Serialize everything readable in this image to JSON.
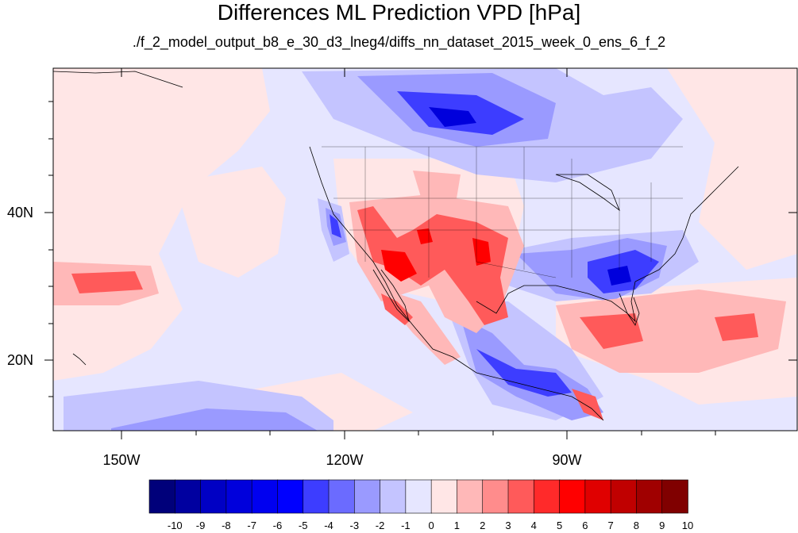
{
  "title": "Differences ML Prediction VPD [hPa]",
  "subtitle": "./f_2_model_output_b8_e_30_d3_lneg4/diffs_nn_dataset_2015_week_0_ens_6_f_2",
  "map": {
    "lat_labels": [
      "40N",
      "20N"
    ],
    "lon_labels": [
      "150W",
      "120W",
      "90W"
    ]
  },
  "colorbar": {
    "labels": [
      "-10",
      "-9",
      "-8",
      "-7",
      "-6",
      "-5",
      "-4",
      "-3",
      "-2",
      "-1",
      "0",
      "1",
      "2",
      "3",
      "4",
      "5",
      "6",
      "7",
      "8",
      "9",
      "10"
    ],
    "colors": [
      "#00007a",
      "#0000a0",
      "#0000c4",
      "#0000dc",
      "#0000f0",
      "#0000ff",
      "#3d3dff",
      "#6b6bff",
      "#9a9aff",
      "#c4c4ff",
      "#e6e6ff",
      "#ffe6e6",
      "#ffb8b8",
      "#ff8c8c",
      "#ff5a5a",
      "#ff2a2a",
      "#ff0000",
      "#e00000",
      "#c00000",
      "#a00000",
      "#800000"
    ]
  },
  "colors": {
    "background_light_blue": "#e6e6ff",
    "background_light_pink": "#ffe6e6"
  }
}
